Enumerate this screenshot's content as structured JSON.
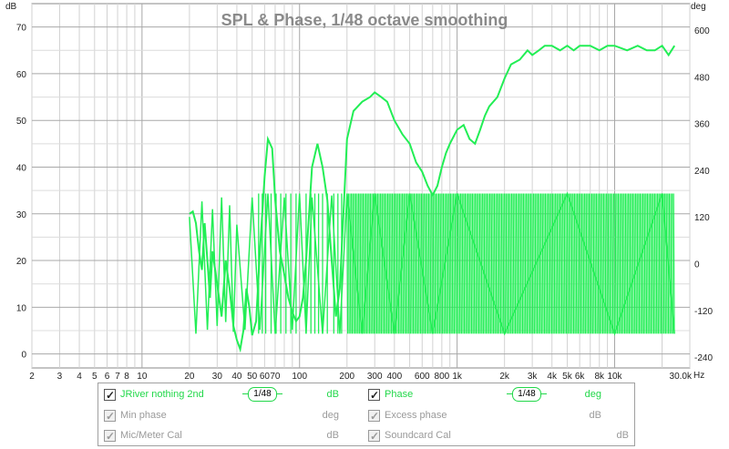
{
  "chart_data": {
    "type": "line",
    "title": "SPL & Phase, 1/48 octave smoothing",
    "left_axis": {
      "label": "dB",
      "range": [
        -3,
        75
      ],
      "ticks": [
        "0",
        "10",
        "20",
        "30",
        "40",
        "50",
        "60",
        "70"
      ],
      "tick_values": [
        0,
        10,
        20,
        30,
        40,
        50,
        60,
        70
      ]
    },
    "right_axis": {
      "label": "deg",
      "range": [
        -268,
        668
      ],
      "ticks": [
        "-240",
        "-120",
        "0",
        "120",
        "240",
        "360",
        "480",
        "600"
      ],
      "tick_values": [
        -240,
        -120,
        0,
        120,
        240,
        360,
        480,
        600
      ]
    },
    "x_axis": {
      "scale": "log",
      "range": [
        2,
        30000
      ],
      "unit": "Hz",
      "ticks": [
        {
          "v": 2,
          "t": "2"
        },
        {
          "v": 3,
          "t": "3"
        },
        {
          "v": 4,
          "t": "4"
        },
        {
          "v": 5,
          "t": "5"
        },
        {
          "v": 6,
          "t": "6"
        },
        {
          "v": 7,
          "t": "7"
        },
        {
          "v": 8,
          "t": "8"
        },
        {
          "v": 10,
          "t": "10"
        },
        {
          "v": 20,
          "t": "20"
        },
        {
          "v": 30,
          "t": "30"
        },
        {
          "v": 40,
          "t": "40"
        },
        {
          "v": 50,
          "t": "50"
        },
        {
          "v": 60,
          "t": "60"
        },
        {
          "v": 70,
          "t": "70"
        },
        {
          "v": 100,
          "t": "100"
        },
        {
          "v": 200,
          "t": "200"
        },
        {
          "v": 300,
          "t": "300"
        },
        {
          "v": 400,
          "t": "400"
        },
        {
          "v": 600,
          "t": "600"
        },
        {
          "v": 800,
          "t": "800"
        },
        {
          "v": 1000,
          "t": "1k"
        },
        {
          "v": 2000,
          "t": "2k"
        },
        {
          "v": 3000,
          "t": "3k"
        },
        {
          "v": 4000,
          "t": "4k"
        },
        {
          "v": 5000,
          "t": "5k"
        },
        {
          "v": 6000,
          "t": "6k"
        },
        {
          "v": 8000,
          "t": "8k"
        },
        {
          "v": 10000,
          "t": "10k"
        },
        {
          "v": 30000,
          "t": "30.0k"
        }
      ],
      "end_label": "Hz"
    },
    "grid": true,
    "series": [
      {
        "name": "JRiver nothing 2nd",
        "axis": "left",
        "color": "#22ee55",
        "x": [
          20,
          21,
          22,
          23,
          24,
          25,
          26,
          27,
          28,
          30,
          32,
          34,
          36,
          38,
          40,
          42,
          44,
          46,
          48,
          50,
          53,
          56,
          60,
          63,
          67,
          70,
          75,
          80,
          85,
          90,
          95,
          100,
          105,
          110,
          115,
          120,
          130,
          140,
          150,
          160,
          170,
          180,
          190,
          200,
          220,
          250,
          280,
          300,
          330,
          360,
          400,
          450,
          500,
          550,
          600,
          650,
          700,
          750,
          800,
          850,
          900,
          1000,
          1100,
          1200,
          1300,
          1400,
          1500,
          1600,
          1800,
          2000,
          2200,
          2500,
          2800,
          3000,
          3300,
          3600,
          4000,
          4500,
          5000,
          5500,
          6000,
          7000,
          8000,
          9000,
          10000,
          12000,
          14000,
          16000,
          18000,
          20000,
          22000,
          24000
        ],
        "y": [
          30,
          30.5,
          28,
          22,
          18,
          28,
          20,
          12,
          22,
          15,
          8,
          20,
          14,
          6,
          3,
          1,
          5,
          14,
          10,
          4,
          7,
          22,
          38,
          46,
          44,
          33,
          22,
          17,
          12,
          9,
          7,
          8,
          12,
          20,
          30,
          40,
          45,
          40,
          33,
          20,
          8,
          14,
          30,
          46,
          52,
          54,
          55,
          56,
          55,
          54,
          50,
          47,
          45,
          41,
          39,
          36,
          34,
          36,
          40,
          43,
          45,
          48,
          49,
          46,
          45,
          48,
          51,
          53,
          55,
          59,
          62,
          63,
          65,
          64,
          65,
          66,
          66,
          65,
          66,
          65,
          66,
          66,
          65,
          66,
          66,
          65,
          66,
          65,
          65,
          66,
          64,
          66
        ]
      },
      {
        "name": "Phase",
        "axis": "right",
        "color": "#22ee55",
        "wrap": [
          -180,
          180
        ],
        "x": [
          20,
          22,
          24,
          26,
          28,
          30,
          32,
          34,
          36,
          38,
          40,
          45,
          50,
          56,
          63,
          70,
          80,
          90,
          100,
          110,
          120,
          140,
          160,
          180,
          200,
          250,
          300,
          400,
          500,
          700,
          1000,
          2000,
          5000,
          10000,
          20000,
          24000
        ],
        "y": [
          120,
          -180,
          160,
          -170,
          140,
          -160,
          170,
          -150,
          150,
          -175,
          100,
          -170,
          170,
          -170,
          180,
          -180,
          170,
          -170,
          180,
          -180,
          170,
          -180,
          175,
          -180,
          180,
          -180,
          180,
          -180,
          180,
          -180,
          180,
          -180,
          180,
          -180,
          180,
          -180
        ]
      }
    ]
  },
  "legend": {
    "row1": {
      "name1": "JRiver nothing 2nd",
      "smooth1": "1/48",
      "unit1": "dB",
      "name2": "Phase",
      "smooth2": "1/48",
      "unit2": "deg"
    },
    "row2": {
      "name1": "Min phase",
      "unit1": "deg",
      "name2": "Excess phase",
      "unit2": "dB"
    },
    "row3": {
      "name1": "Mic/Meter Cal",
      "unit1": "dB",
      "name2": "Soundcard Cal",
      "unit2": "dB"
    }
  }
}
